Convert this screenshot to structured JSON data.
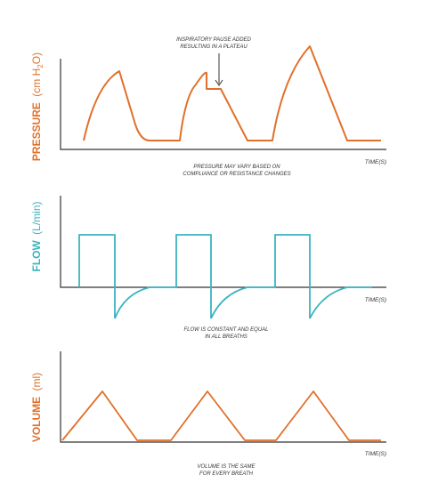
{
  "colors": {
    "pressure": "#e0702a",
    "flow": "#3bb4c1",
    "volume": "#e0702a",
    "axis": "#333333",
    "text": "#333333"
  },
  "pressure": {
    "label_main": "PRESSURE",
    "label_unit_open": "(cm H",
    "label_unit_sub": "2",
    "label_unit_close": "O)",
    "time_label": "TIME(S)",
    "annotation_line1": "INSPIRATORY PAUSE ADDED",
    "annotation_line2": "RESULTING IN A PLATEAU",
    "caption_line1": "PRESSURE MAY VARY BASED ON",
    "caption_line2": "COMPLIANCE OR RESISTANCE CHANGES"
  },
  "flow": {
    "label_main": "FLOW",
    "label_unit": "(L/min)",
    "time_label": "TIME(S)",
    "caption_line1": "FLOW IS CONSTANT AND EQUAL",
    "caption_line2": "IN ALL BREATHS"
  },
  "volume": {
    "label_main": "VOLUME",
    "label_unit": "(ml)",
    "time_label": "TIME(S)",
    "caption_line1": "VOLUME IS THE SAME",
    "caption_line2": "FOR EVERY BREATH"
  }
}
